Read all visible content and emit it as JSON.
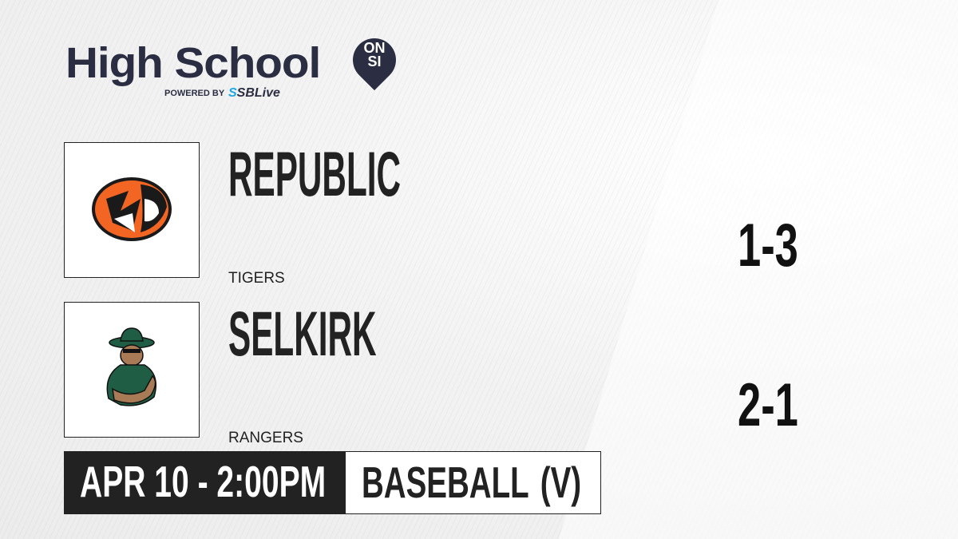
{
  "brand": {
    "title": "High School",
    "badge_line1": "ON",
    "badge_line2": "SI",
    "powered_by": "POWERED BY",
    "partner": "SBLive",
    "brand_color": "#2b2e43",
    "partner_color": "#1aa7e6"
  },
  "teams": [
    {
      "name": "REPUBLIC",
      "mascot": "TIGERS",
      "record": "1-3",
      "logo_icon": "tiger-logo-icon",
      "colors": [
        "#f26522",
        "#1a1a1a"
      ]
    },
    {
      "name": "SELKIRK",
      "mascot": "RANGERS",
      "record": "2-1",
      "logo_icon": "ranger-logo-icon",
      "colors": [
        "#1f5e45",
        "#a87a55"
      ]
    }
  ],
  "game": {
    "datetime": "APR 10 - 2:00PM",
    "sport": "BASEBALL (V)"
  }
}
